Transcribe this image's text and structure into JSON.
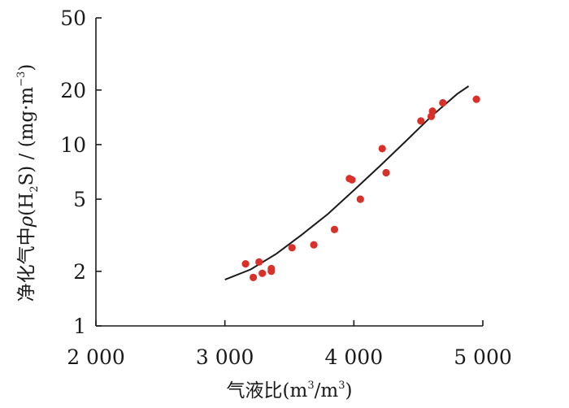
{
  "chart_data": {
    "type": "scatter",
    "x_axis": {
      "label": {
        "main": "气液比",
        "open": "(",
        "m1": "m",
        "exp1": "3",
        "slash": "/",
        "m2": "m",
        "exp2": "3",
        "close": ")"
      },
      "ticks": [
        2000,
        3000,
        4000,
        5000
      ],
      "tick_labels": [
        "2 000",
        "3 000",
        "4 000",
        "5 000"
      ],
      "range": [
        2000,
        5000
      ],
      "scale": "linear"
    },
    "y_axis": {
      "label": {
        "main": "净化气中",
        "rho": "ρ",
        "h": "(H",
        "sub": "2",
        "s": "S) / (mg·m",
        "exp": "−3",
        "close": ")"
      },
      "ticks": [
        1,
        2,
        5,
        10,
        20,
        50
      ],
      "tick_labels": [
        "1",
        "2",
        "5",
        "10",
        "20",
        "50"
      ],
      "range": [
        1,
        50
      ],
      "scale": "log"
    },
    "series": [
      {
        "kind": "scatter",
        "color": "#d9302a",
        "points": [
          [
            3160,
            2.2
          ],
          [
            3220,
            1.85
          ],
          [
            3265,
            2.25
          ],
          [
            3290,
            1.95
          ],
          [
            3360,
            2.07
          ],
          [
            3360,
            2.0
          ],
          [
            3520,
            2.7
          ],
          [
            3690,
            2.8
          ],
          [
            3850,
            3.4
          ],
          [
            3965,
            6.5
          ],
          [
            3985,
            6.4
          ],
          [
            4050,
            5.0
          ],
          [
            4220,
            9.5
          ],
          [
            4250,
            7.0
          ],
          [
            4520,
            13.5
          ],
          [
            4600,
            14.3
          ],
          [
            4610,
            15.3
          ],
          [
            4690,
            17.0
          ],
          [
            4950,
            17.8
          ]
        ]
      },
      {
        "kind": "line",
        "color": "#1a1a1a",
        "points": [
          [
            3000,
            1.8
          ],
          [
            3200,
            2.05
          ],
          [
            3400,
            2.5
          ],
          [
            3600,
            3.2
          ],
          [
            3800,
            4.15
          ],
          [
            4000,
            5.6
          ],
          [
            4200,
            7.6
          ],
          [
            4400,
            10.4
          ],
          [
            4600,
            14.3
          ],
          [
            4800,
            19.0
          ],
          [
            4890,
            21.0
          ]
        ]
      }
    ],
    "grid": false,
    "legend": "none"
  }
}
